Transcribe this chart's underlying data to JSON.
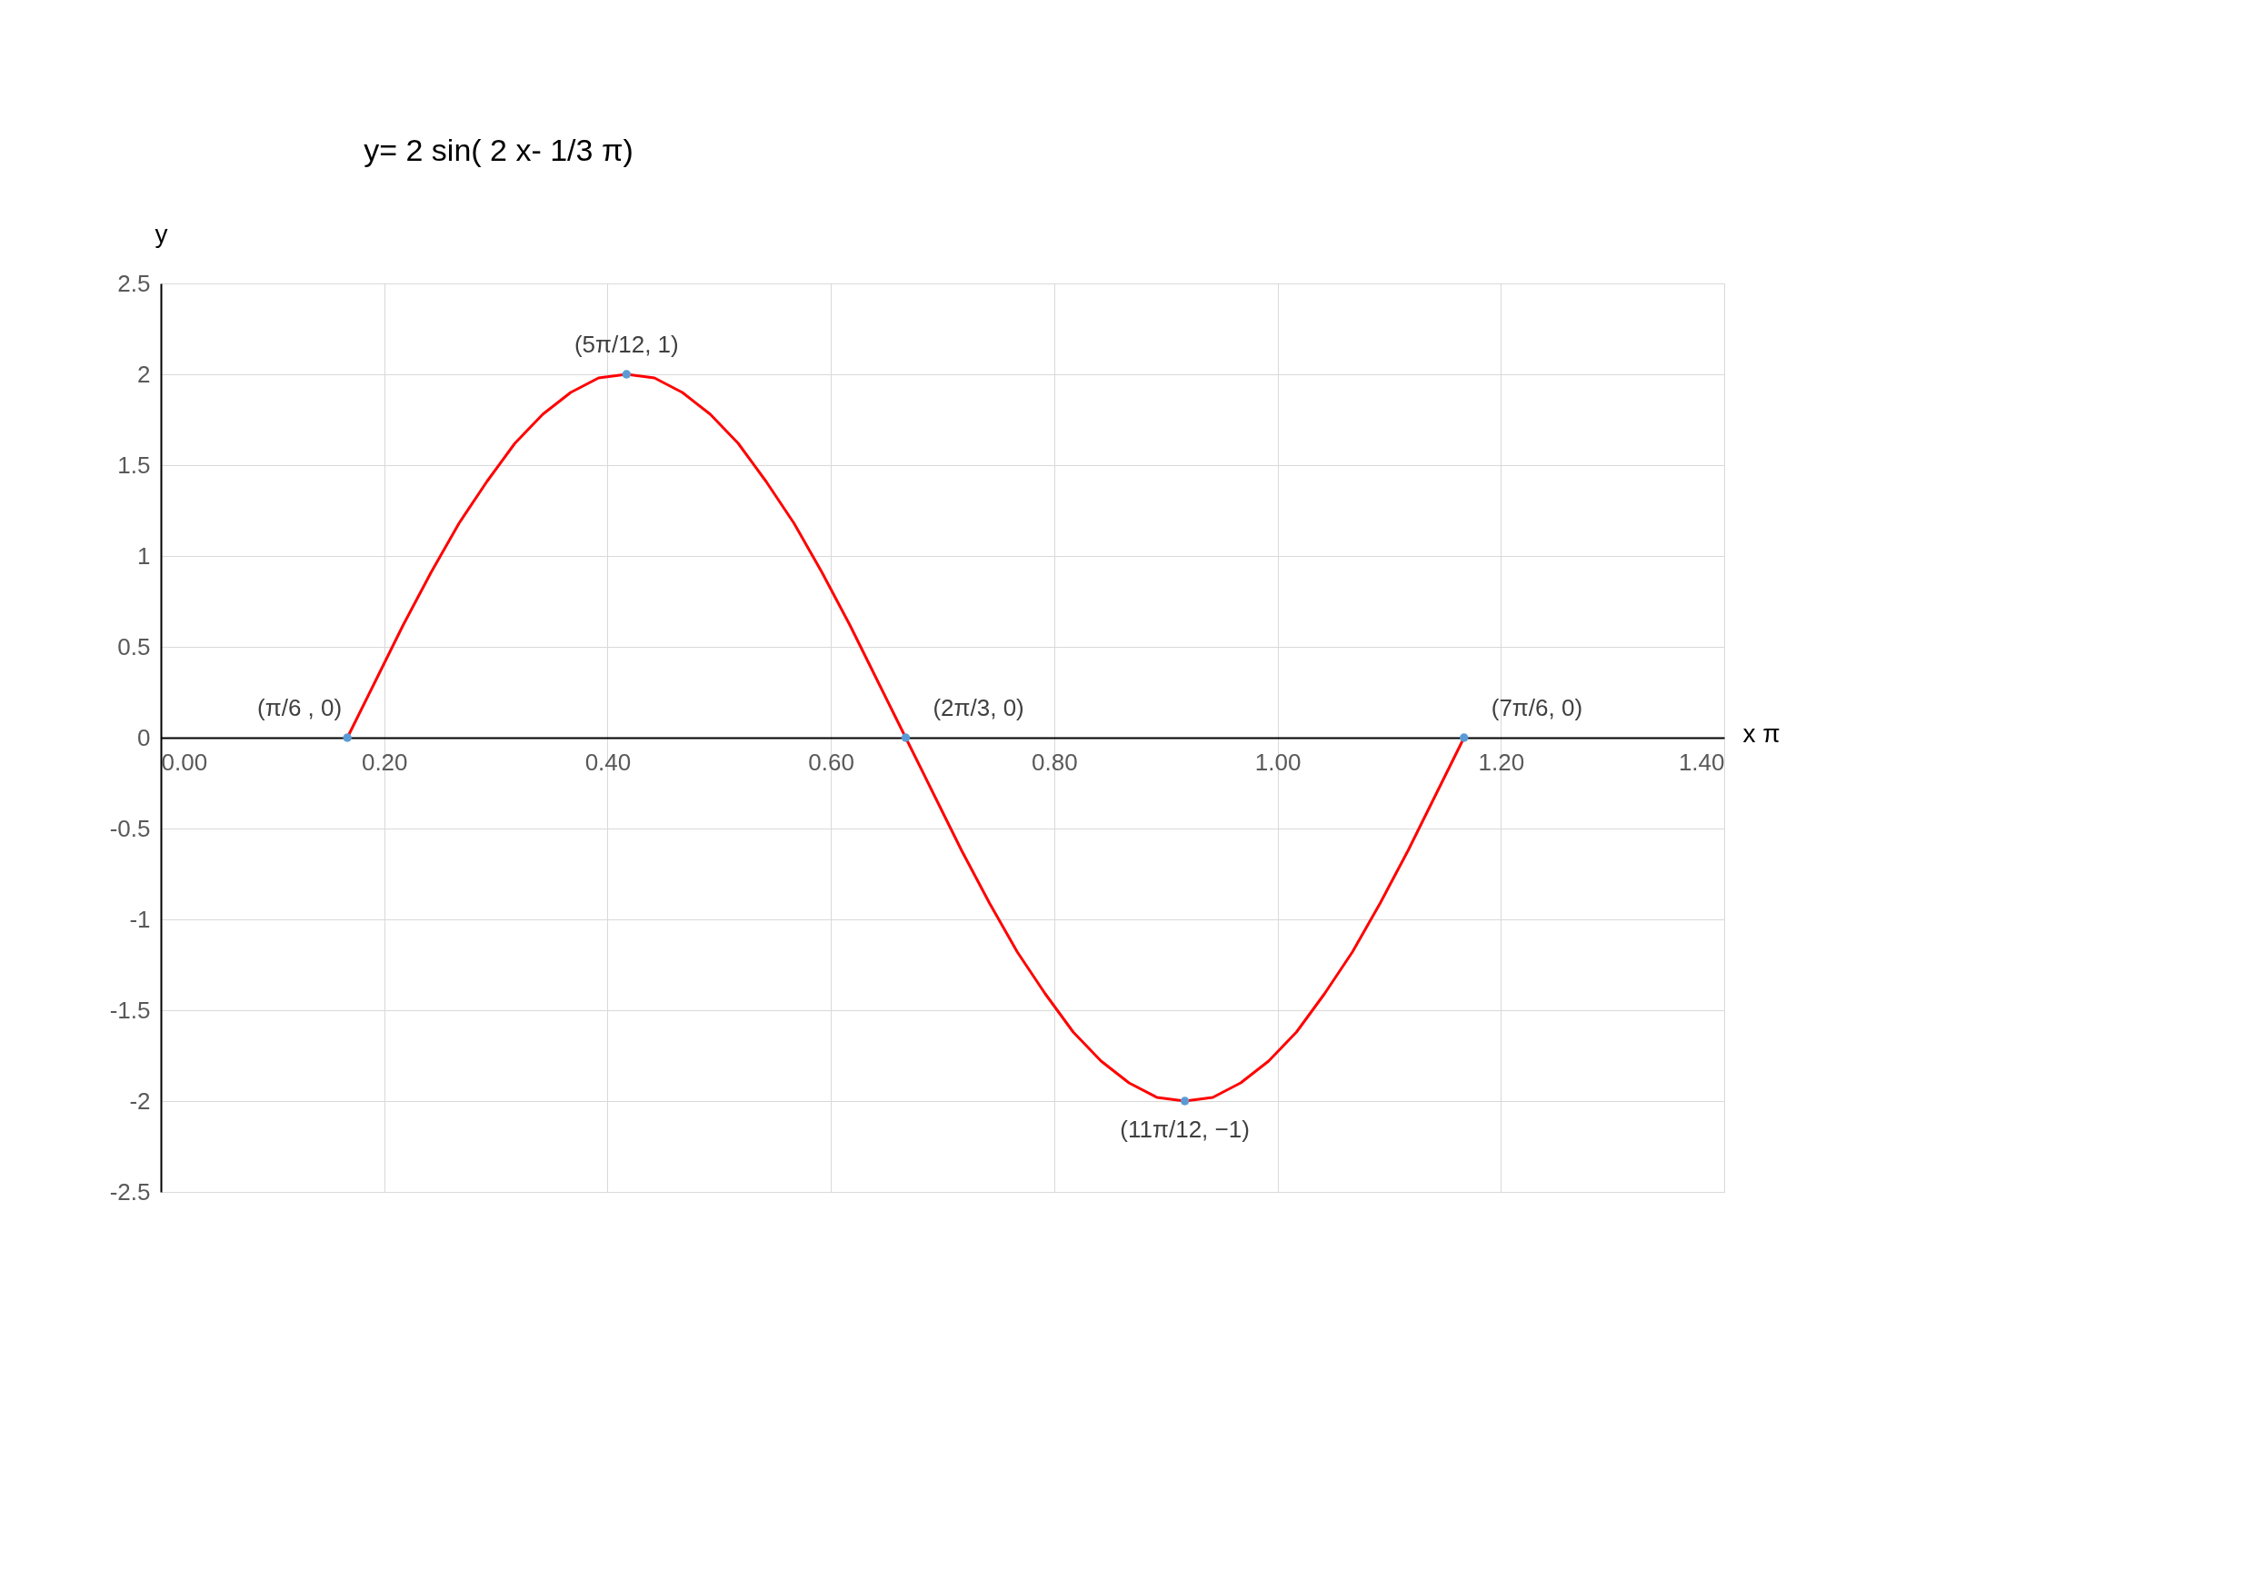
{
  "chart_data": {
    "type": "line",
    "title": "y= 2 sin(  2 x- 1/3  π)",
    "xlabel": "x π",
    "ylabel": "y",
    "xlim": [
      0,
      1.4
    ],
    "xticks": [
      {
        "value": 0,
        "label": "0.00"
      },
      {
        "value": 0.2,
        "label": "0.20"
      },
      {
        "value": 0.4,
        "label": "0.40"
      },
      {
        "value": 0.6,
        "label": "0.60"
      },
      {
        "value": 0.8,
        "label": "0.80"
      },
      {
        "value": 1.0,
        "label": "1.00"
      },
      {
        "value": 1.2,
        "label": "1.20"
      },
      {
        "value": 1.4,
        "label": "1.40"
      }
    ],
    "ylim": [
      -2.5,
      2.5
    ],
    "yticks": [
      -2.5,
      -2,
      -1.5,
      -1,
      -0.5,
      0,
      0.5,
      1,
      1.5,
      2,
      2.5
    ],
    "grid": true,
    "series": [
      {
        "color": "#ff0000",
        "marker": "none",
        "x": [
          0.167,
          0.192,
          0.217,
          0.242,
          0.267,
          0.292,
          0.317,
          0.342,
          0.367,
          0.392,
          0.417,
          0.442,
          0.467,
          0.492,
          0.517,
          0.542,
          0.567,
          0.592,
          0.617,
          0.642,
          0.667,
          0.692,
          0.717,
          0.742,
          0.767,
          0.792,
          0.817,
          0.842,
          0.867,
          0.892,
          0.917,
          0.942,
          0.967,
          0.992,
          1.017,
          1.042,
          1.067,
          1.092,
          1.117,
          1.142,
          1.167
        ],
        "values": [
          0,
          0.31,
          0.62,
          0.91,
          1.18,
          1.41,
          1.62,
          1.78,
          1.9,
          1.98,
          2,
          1.98,
          1.9,
          1.78,
          1.62,
          1.41,
          1.18,
          0.91,
          0.62,
          0.31,
          0,
          -0.31,
          -0.62,
          -0.91,
          -1.18,
          -1.41,
          -1.62,
          -1.78,
          -1.9,
          -1.98,
          -2,
          -1.98,
          -1.9,
          -1.78,
          -1.62,
          -1.41,
          -1.18,
          -0.91,
          -0.62,
          -0.31,
          0
        ]
      },
      {
        "type": "scatter",
        "color": "#5b9bd5",
        "marker": "circle",
        "x": [
          0.167,
          0.417,
          0.667,
          0.917,
          1.167
        ],
        "values": [
          0,
          2,
          0,
          -2,
          0
        ]
      }
    ],
    "annotations": [
      {
        "text": "(π/6 , 0)",
        "x": 0.167,
        "y": 0
      },
      {
        "text": "(5π/12,  1)",
        "x": 0.417,
        "y": 2
      },
      {
        "text": "(2π/3,  0)",
        "x": 0.667,
        "y": 0
      },
      {
        "text": "(7π/6,  0)",
        "x": 1.167,
        "y": 0
      },
      {
        "text": "(11π/12,  −1)",
        "x": 0.917,
        "y": -2
      }
    ]
  }
}
